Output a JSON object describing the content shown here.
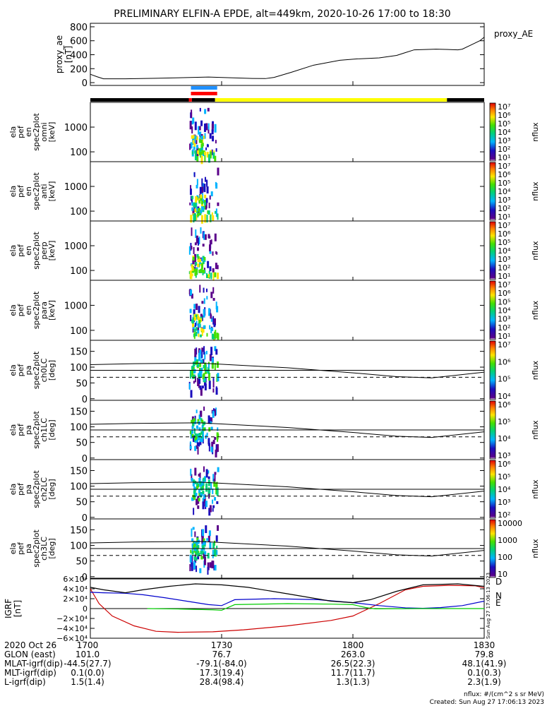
{
  "title": "PRELIMINARY ELFIN-A EPDE, alt=449km, 2020-10-26 17:00 to 18:30",
  "chart_data": [
    {
      "type": "line",
      "panel": "proxy_ae",
      "legend": "proxy_AE",
      "ylabel": [
        "proxy_ae",
        "[nT]"
      ],
      "ytick_labels": [
        "800",
        "600",
        "400",
        "200",
        "0"
      ],
      "ylim": [
        -40,
        850
      ],
      "x_unit": "minutes after 17:00",
      "xlim": [
        0,
        90
      ],
      "points": [
        [
          0,
          120
        ],
        [
          1.5,
          85
        ],
        [
          3,
          55
        ],
        [
          8,
          55
        ],
        [
          15,
          62
        ],
        [
          22,
          72
        ],
        [
          27,
          80
        ],
        [
          32,
          70
        ],
        [
          37,
          60
        ],
        [
          40,
          58
        ],
        [
          42,
          75
        ],
        [
          46,
          150
        ],
        [
          51,
          250
        ],
        [
          57,
          320
        ],
        [
          61,
          340
        ],
        [
          66,
          355
        ],
        [
          70,
          390
        ],
        [
          72,
          430
        ],
        [
          74,
          470
        ],
        [
          79,
          480
        ],
        [
          84,
          470
        ],
        [
          85,
          480
        ],
        [
          87,
          540
        ],
        [
          89,
          600
        ],
        [
          91,
          650
        ],
        [
          95,
          650
        ]
      ]
    },
    {
      "type": "bar",
      "name": "science zone / data quality bars",
      "segments": [
        {
          "color": "#000000",
          "x": [
            0,
            22.5
          ]
        },
        {
          "color": "#ff0000",
          "x": [
            22.5,
            23.2
          ]
        },
        {
          "color": "#000000",
          "x": [
            23.2,
            28.5
          ]
        },
        {
          "color": "#ffff00",
          "x": [
            28.5,
            81.5
          ]
        },
        {
          "color": "#000000",
          "x": [
            81.5,
            90
          ]
        }
      ],
      "bars": [
        {
          "color": "#1e90ff",
          "x": [
            22.5,
            28.5
          ]
        },
        {
          "color": "#ff0000",
          "x": [
            22.5,
            28.5
          ]
        }
      ]
    },
    {
      "type": "heatmap",
      "panel": "ela_pef_en_spec2plot_omni",
      "ylabel": [
        "ela",
        "pef",
        "en",
        "spec2plot",
        "omni",
        "[keV]"
      ],
      "ytick_labels": [
        "1000",
        "100"
      ],
      "colorbar_label": "nflux",
      "colorbar_ticks": [
        "10⁷",
        "10⁶",
        "10⁵",
        "10⁴",
        "10³",
        "10²",
        "10¹"
      ]
    },
    {
      "type": "heatmap",
      "panel": "ela_pef_en_spec2plot_anti",
      "ylabel": [
        "ela",
        "pef",
        "en",
        "spec2plot",
        "anti",
        "[keV]"
      ],
      "ytick_labels": [
        "1000",
        "100"
      ],
      "colorbar_label": "nflux",
      "colorbar_ticks": [
        "10⁷",
        "10⁶",
        "10⁵",
        "10⁴",
        "10³",
        "10²",
        "10¹"
      ]
    },
    {
      "type": "heatmap",
      "panel": "ela_pef_en_spec2plot_perp",
      "ylabel": [
        "ela",
        "pef",
        "en",
        "spec2plot",
        "perp",
        "[keV]"
      ],
      "ytick_labels": [
        "1000",
        "100"
      ],
      "colorbar_label": "nflux",
      "colorbar_ticks": [
        "10⁷",
        "10⁶",
        "10⁵",
        "10⁴",
        "10³",
        "10²",
        "10¹"
      ]
    },
    {
      "type": "heatmap",
      "panel": "ela_pef_en_spec2plot_para",
      "ylabel": [
        "ela",
        "pef",
        "en",
        "spec2plot",
        "para",
        "[keV]"
      ],
      "ytick_labels": [
        "1000",
        "100"
      ],
      "colorbar_label": "nflux",
      "colorbar_ticks": [
        "10⁷",
        "10⁶",
        "10⁵",
        "10⁴",
        "10³",
        "10²",
        "10¹"
      ]
    },
    {
      "type": "heatmap",
      "panel": "ela_pef_pa_spec2plot_ch0LC",
      "ylabel": [
        "ela",
        "pef",
        "pa",
        "spec2plot",
        "ch0LC",
        "[deg]"
      ],
      "ytick_labels": [
        "150",
        "100",
        "50",
        "0"
      ],
      "colorbar_label": "nflux",
      "colorbar_ticks": [
        "10⁷",
        "10⁶",
        "10⁵",
        "10⁴"
      ]
    },
    {
      "type": "heatmap",
      "panel": "ela_pef_pa_spec2plot_ch1LC",
      "ylabel": [
        "ela",
        "pef",
        "pa",
        "spec2plot",
        "ch1LC",
        "[deg]"
      ],
      "ytick_labels": [
        "150",
        "100",
        "50",
        "0"
      ],
      "colorbar_label": "nflux",
      "colorbar_ticks": [
        "10⁶",
        "10⁵",
        "10⁴",
        "10³"
      ]
    },
    {
      "type": "heatmap",
      "panel": "ela_pef_pa_spec2plot_ch2LC",
      "ylabel": [
        "ela",
        "pef",
        "pa",
        "spec2plot",
        "ch2LC",
        "[deg]"
      ],
      "ytick_labels": [
        "150",
        "100",
        "50",
        "0"
      ],
      "colorbar_label": "nflux",
      "colorbar_ticks": [
        "10⁶",
        "10⁵",
        "10⁴",
        "10³",
        "10²"
      ]
    },
    {
      "type": "heatmap",
      "panel": "ela_pef_pa_spec2plot_ch3LC",
      "ylabel": [
        "ela",
        "pef",
        "pa",
        "spec2plot",
        "ch3LC",
        "[deg]"
      ],
      "ytick_labels": [
        "150",
        "100",
        "50",
        "0"
      ],
      "colorbar_label": "nflux",
      "colorbar_ticks": [
        "10000",
        "1000",
        "100",
        "10"
      ]
    },
    {
      "type": "line",
      "panel": "IGRF",
      "ylabel": [
        "IGRF",
        "[nT]"
      ],
      "ytick_labels": [
        "6×10⁴",
        "4×10⁴",
        "2×10⁴",
        "0",
        "−2×10⁴",
        "−4×10⁴",
        "−6×10⁴"
      ],
      "ylim": [
        -60000,
        60000
      ],
      "series": [
        {
          "name": "D",
          "color": "#cc0000",
          "points": [
            [
              0,
              40000
            ],
            [
              2,
              10000
            ],
            [
              5,
              -15000
            ],
            [
              10,
              -35000
            ],
            [
              15,
              -46000
            ],
            [
              20,
              -48000
            ],
            [
              28,
              -47000
            ],
            [
              35,
              -43000
            ],
            [
              45,
              -35000
            ],
            [
              55,
              -24000
            ],
            [
              60,
              -15000
            ],
            [
              66,
              10000
            ],
            [
              72,
              38000
            ],
            [
              76,
              45000
            ],
            [
              82,
              47000
            ],
            [
              88,
              46000
            ],
            [
              90,
              42000
            ]
          ]
        },
        {
          "name": "N",
          "color": "#0000cc",
          "points": [
            [
              0,
              33000
            ],
            [
              3,
              32000
            ],
            [
              8,
              31000
            ],
            [
              12,
              28000
            ],
            [
              17,
              22000
            ],
            [
              22,
              15000
            ],
            [
              27,
              8000
            ],
            [
              30,
              6000
            ],
            [
              31,
              10000
            ],
            [
              33,
              18000
            ],
            [
              42,
              20000
            ],
            [
              52,
              18000
            ],
            [
              60,
              12000
            ],
            [
              66,
              6000
            ],
            [
              72,
              1500
            ],
            [
              76,
              500
            ],
            [
              80,
              2000
            ],
            [
              85,
              6000
            ],
            [
              90,
              15000
            ]
          ]
        },
        {
          "name": "E",
          "color": "#00cc00",
          "points": [
            [
              13,
              0
            ],
            [
              20,
              -800
            ],
            [
              28,
              -2500
            ],
            [
              30,
              -3500
            ],
            [
              33,
              8000
            ],
            [
              45,
              10000
            ],
            [
              55,
              9000
            ],
            [
              60,
              8000
            ],
            [
              63,
              2000
            ],
            [
              65,
              -500
            ],
            [
              75,
              0
            ],
            [
              90,
              0
            ]
          ]
        },
        {
          "name": "|B|",
          "color": "#000000",
          "points": [
            [
              0,
              43000
            ],
            [
              3,
              38000
            ],
            [
              8,
              32000
            ],
            [
              12,
              38000
            ],
            [
              18,
              45000
            ],
            [
              24,
              50000
            ],
            [
              30,
              48000
            ],
            [
              36,
              43000
            ],
            [
              45,
              30000
            ],
            [
              55,
              15000
            ],
            [
              60,
              12000
            ],
            [
              64,
              18000
            ],
            [
              70,
              35000
            ],
            [
              76,
              48000
            ],
            [
              84,
              50000
            ],
            [
              90,
              45000
            ]
          ]
        }
      ],
      "labels": [
        "D",
        "N",
        "E"
      ]
    }
  ],
  "xaxis": {
    "row_labels": [
      "2020 Oct 26",
      "GLON (east)",
      "MLAT-igrf(dip)",
      "MLT-igrf(dip)",
      "L-igrf(dip)"
    ],
    "ticks": [
      {
        "x": 0,
        "values": [
          "1700",
          "101.0",
          "-44.5(27.7)",
          "0.1(0.0)",
          "1.5(1.4)"
        ]
      },
      {
        "x": 30,
        "values": [
          "1730",
          "76.7",
          "-79.1(-84.0)",
          "17.3(19.4)",
          "28.4(98.4)"
        ]
      },
      {
        "x": 60,
        "values": [
          "1800",
          "263.0",
          "26.5(22.3)",
          "11.7(11.7)",
          "1.3(1.3)"
        ]
      },
      {
        "x": 90,
        "values": [
          "1830",
          "79.8",
          "48.1(41.9)",
          "0.1(0.3)",
          "2.3(1.9)"
        ]
      }
    ]
  },
  "footer": {
    "units": "nflux: #/(cm^2 s sr MeV)",
    "created": "Created: Sun Aug 27 17:06:13 2023",
    "stamp": "Sun Aug 27 17:06:13 2023"
  }
}
